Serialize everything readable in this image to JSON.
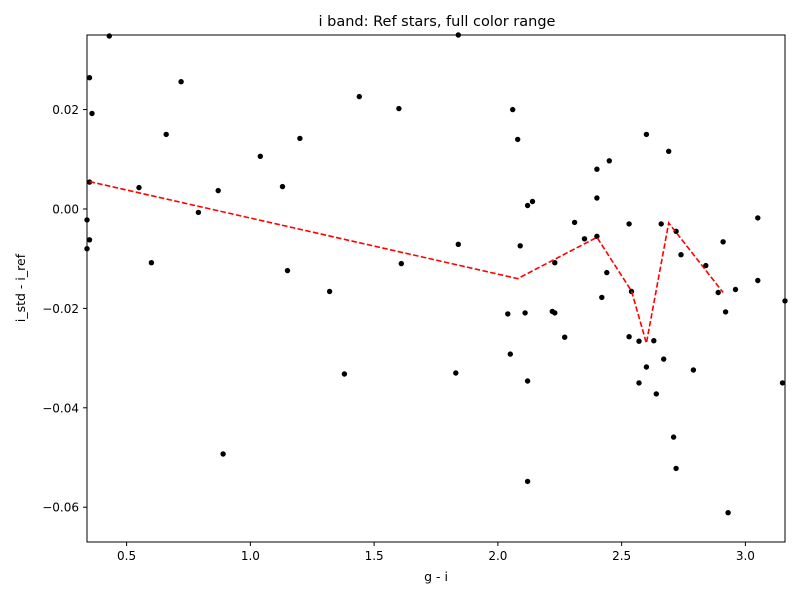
{
  "chart_data": {
    "type": "scatter",
    "title": "i band: Ref stars, full color range",
    "xlabel": "g - i",
    "ylabel": "i_std - i_ref",
    "xlim": [
      0.34,
      3.16
    ],
    "ylim": [
      -0.067,
      0.035
    ],
    "x_ticks": [
      0.5,
      1.0,
      1.5,
      2.0,
      2.5,
      3.0
    ],
    "x_tick_labels": [
      "0.5",
      "1.0",
      "1.5",
      "2.0",
      "2.5",
      "3.0"
    ],
    "y_ticks": [
      0.02,
      0.0,
      -0.02,
      -0.04,
      -0.06
    ],
    "y_tick_labels": [
      "0.02",
      "0.00",
      "−0.02",
      "−0.04",
      "−0.06"
    ],
    "grid": false,
    "legend": "none",
    "points_color": "#000000",
    "trend_color": "#ff0000",
    "points": [
      [
        0.43,
        0.0348
      ],
      [
        1.84,
        0.035
      ],
      [
        0.35,
        0.0264
      ],
      [
        0.36,
        0.0192
      ],
      [
        0.72,
        0.0256
      ],
      [
        1.44,
        0.0226
      ],
      [
        1.6,
        0.0202
      ],
      [
        2.06,
        0.02
      ],
      [
        0.66,
        0.015
      ],
      [
        1.2,
        0.0142
      ],
      [
        2.08,
        0.014
      ],
      [
        2.6,
        0.015
      ],
      [
        2.69,
        0.0116
      ],
      [
        1.04,
        0.0106
      ],
      [
        2.45,
        0.0097
      ],
      [
        2.4,
        0.008
      ],
      [
        0.35,
        0.0054
      ],
      [
        0.55,
        0.0043
      ],
      [
        1.13,
        0.0045
      ],
      [
        0.87,
        0.0037
      ],
      [
        2.4,
        0.0022
      ],
      [
        2.14,
        0.0015
      ],
      [
        2.12,
        0.0007
      ],
      [
        0.79,
        -0.0007
      ],
      [
        0.34,
        -0.0022
      ],
      [
        3.05,
        -0.0018
      ],
      [
        2.31,
        -0.0027
      ],
      [
        2.53,
        -0.003
      ],
      [
        2.66,
        -0.003
      ],
      [
        2.72,
        -0.0045
      ],
      [
        2.4,
        -0.0055
      ],
      [
        2.35,
        -0.006
      ],
      [
        0.35,
        -0.0062
      ],
      [
        2.91,
        -0.0066
      ],
      [
        1.84,
        -0.0071
      ],
      [
        2.09,
        -0.0074
      ],
      [
        0.34,
        -0.008
      ],
      [
        2.74,
        -0.0092
      ],
      [
        0.6,
        -0.0108
      ],
      [
        1.61,
        -0.011
      ],
      [
        2.23,
        -0.0108
      ],
      [
        2.84,
        -0.0114
      ],
      [
        1.15,
        -0.0124
      ],
      [
        2.44,
        -0.0128
      ],
      [
        3.05,
        -0.0144
      ],
      [
        2.96,
        -0.0162
      ],
      [
        1.32,
        -0.0166
      ],
      [
        2.54,
        -0.0166
      ],
      [
        2.89,
        -0.0168
      ],
      [
        2.42,
        -0.0178
      ],
      [
        3.16,
        -0.0185
      ],
      [
        2.92,
        -0.0207
      ],
      [
        2.22,
        -0.0206
      ],
      [
        2.23,
        -0.0209
      ],
      [
        2.04,
        -0.0211
      ],
      [
        2.11,
        -0.0209
      ],
      [
        2.53,
        -0.0257
      ],
      [
        2.27,
        -0.0258
      ],
      [
        2.57,
        -0.0266
      ],
      [
        2.63,
        -0.0265
      ],
      [
        2.05,
        -0.0292
      ],
      [
        2.67,
        -0.0302
      ],
      [
        2.6,
        -0.0318
      ],
      [
        2.79,
        -0.0324
      ],
      [
        1.38,
        -0.0332
      ],
      [
        1.83,
        -0.033
      ],
      [
        2.12,
        -0.0346
      ],
      [
        2.57,
        -0.035
      ],
      [
        3.15,
        -0.035
      ],
      [
        2.64,
        -0.0372
      ],
      [
        2.71,
        -0.0459
      ],
      [
        2.72,
        -0.0522
      ],
      [
        0.89,
        -0.0493
      ],
      [
        2.12,
        -0.0548
      ],
      [
        2.93,
        -0.0611
      ]
    ],
    "trend_line": [
      [
        0.35,
        0.0055
      ],
      [
        2.08,
        -0.014
      ],
      [
        2.4,
        -0.0057
      ],
      [
        2.54,
        -0.0165
      ],
      [
        2.6,
        -0.027
      ],
      [
        2.69,
        -0.0028
      ],
      [
        2.91,
        -0.0168
      ]
    ]
  }
}
